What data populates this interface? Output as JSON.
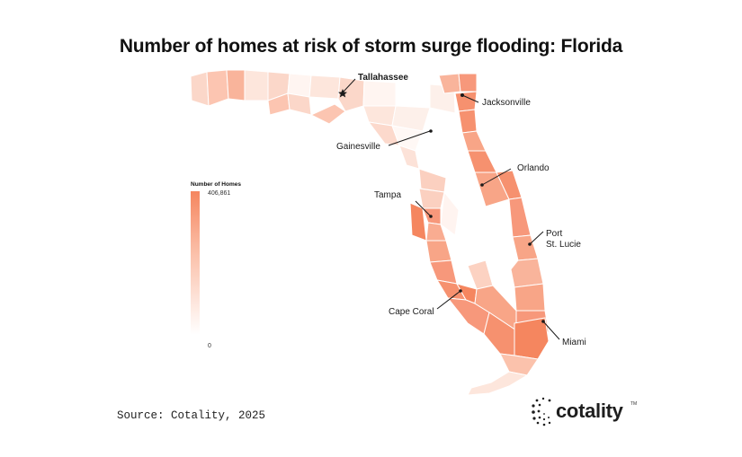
{
  "title": "Number of homes at risk of storm surge flooding: Florida",
  "legend": {
    "title": "Number of Homes",
    "max_label": "406,861",
    "min_label": "0"
  },
  "cities": [
    {
      "name": "Tallahassee"
    },
    {
      "name": "Jacksonville"
    },
    {
      "name": "Gainesville"
    },
    {
      "name": "Orlando"
    },
    {
      "name": "Tampa"
    },
    {
      "name": "Port St. Lucie",
      "lines": [
        "Port",
        "St. Lucie"
      ]
    },
    {
      "name": "Cape Coral"
    },
    {
      "name": "Miami"
    }
  ],
  "colors": {
    "low": "#ffffff",
    "high": "#f5865f",
    "border": "#ffffff",
    "land": "#fdf3ef"
  },
  "source": "Source: Cotality, 2025",
  "brand": {
    "name": "cotality",
    "tm": "TM"
  }
}
